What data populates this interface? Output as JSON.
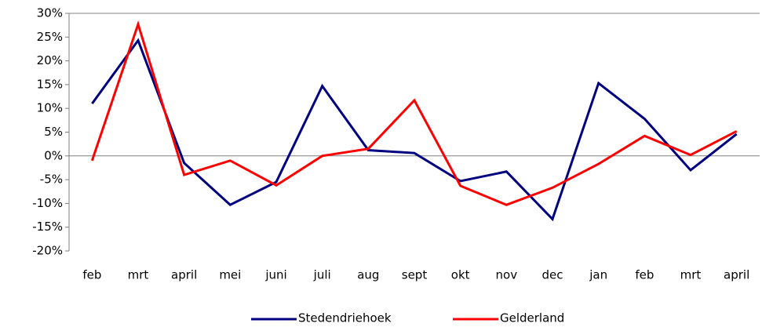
{
  "chart_data": {
    "type": "line",
    "categories": [
      "feb",
      "mrt",
      "april",
      "mei",
      "juni",
      "juli",
      "aug",
      "sept",
      "okt",
      "nov",
      "dec",
      "jan",
      "feb",
      "mrt",
      "april"
    ],
    "series": [
      {
        "name": "Stedendriehoek",
        "color": "#000080",
        "values": [
          11,
          24.3,
          -1.5,
          -10.3,
          -5.5,
          14.7,
          1.2,
          0.6,
          -5.3,
          -3.3,
          -13.3,
          15.3,
          7.8,
          -3,
          4.6
        ]
      },
      {
        "name": "Gelderland",
        "color": "#ff0000",
        "values": [
          -1,
          27.7,
          -4,
          -1,
          -6.2,
          0,
          1.5,
          11.7,
          -6.3,
          -10.3,
          -6.7,
          -1.7,
          4.2,
          0.2,
          5.2
        ]
      }
    ],
    "ylim": [
      -20,
      30
    ],
    "yticks": [
      {
        "value": -20,
        "label": "-20%"
      },
      {
        "value": -15,
        "label": "-15%"
      },
      {
        "value": -10,
        "label": "-10%"
      },
      {
        "value": -5,
        "label": "-5%"
      },
      {
        "value": 0,
        "label": "0%"
      },
      {
        "value": 5,
        "label": "5%"
      },
      {
        "value": 10,
        "label": "10%"
      },
      {
        "value": 15,
        "label": "15%"
      },
      {
        "value": 20,
        "label": "20%"
      },
      {
        "value": 25,
        "label": "25%"
      },
      {
        "value": 30,
        "label": "30%"
      }
    ],
    "legend": "bottom"
  }
}
